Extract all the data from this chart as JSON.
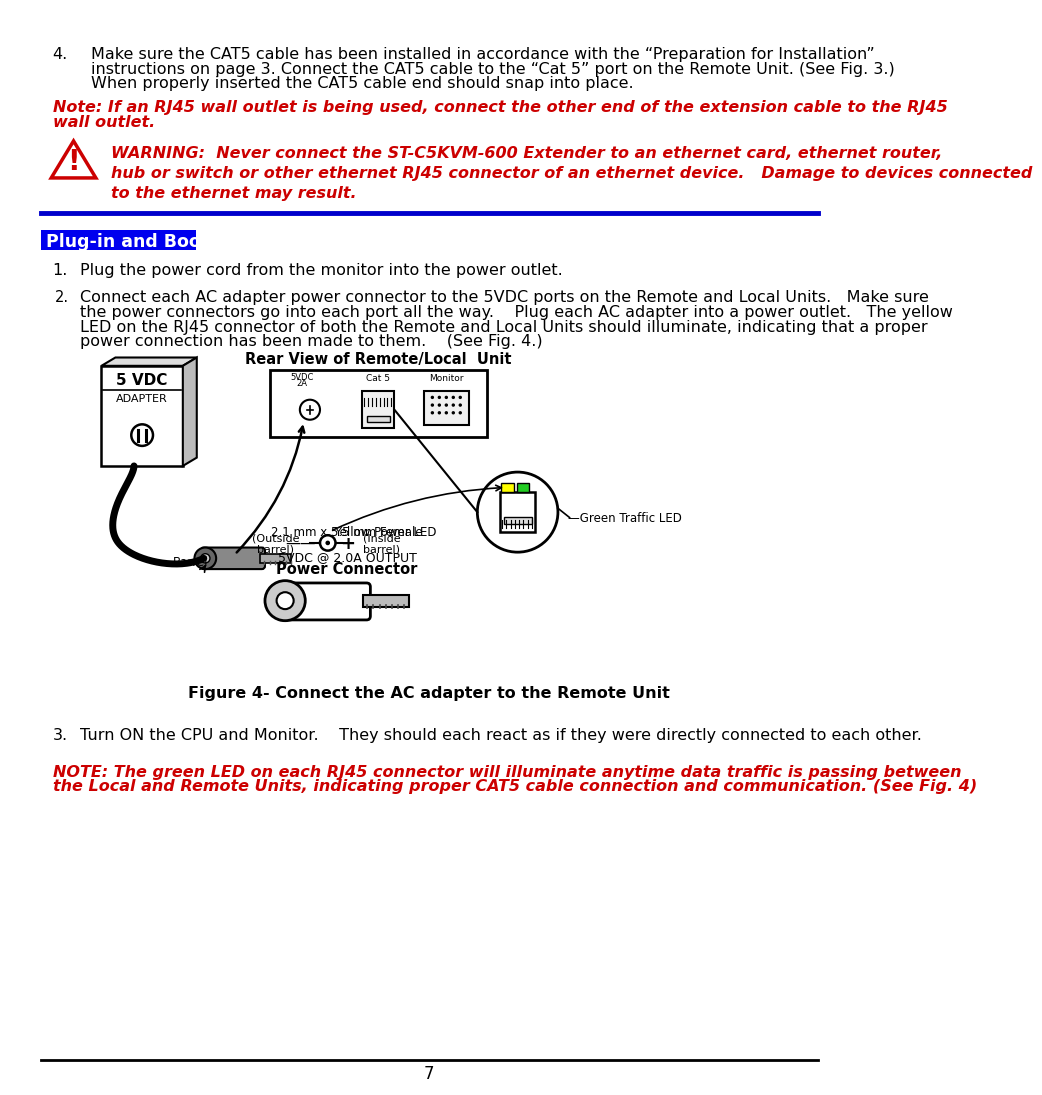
{
  "bg_color": "#ffffff",
  "text_color": "#000000",
  "red_color": "#cc0000",
  "blue_color": "#0000cc",
  "section_bg": "#0000ee",
  "section_text": "#ffffff",
  "page_number": "7",
  "item4_num": "4.",
  "item4_text_line1": "Make sure the CAT5 cable has been installed in accordance with the “Preparation for Installation”",
  "item4_text_line2": "instructions on page 3. Connect the CAT5 cable to the “Cat 5” port on the Remote Unit. (See Fig. 3.)",
  "item4_text_line3": "When properly inserted the CAT5 cable end should snap into place.",
  "note_rj45_line1": "Note: If an RJ45 wall outlet is being used, connect the other end of the extension cable to the RJ45",
  "note_rj45_line2": "wall outlet.",
  "warning_text": "WARNING:  Never connect the ST-C5KVM-600 Extender to an ethernet card, ethernet router,\nhub or switch or other ethernet RJ45 connector of an ethernet device.   Damage to devices connected\nto the ethernet may result.",
  "section_title": "Plug-in and Boot Up",
  "item1_num": "1.",
  "item1_text": "Plug the power cord from the monitor into the power outlet.",
  "item2_num": "2.",
  "item2_text_line1": "Connect each AC adapter power connector to the 5VDC ports on the Remote and Local Units.   Make sure",
  "item2_text_line2": "the power connectors go into each port all the way.    Plug each AC adapter into a power outlet.   The yellow",
  "item2_text_line3": "LED on the RJ45 connector of both the Remote and Local Units should illuminate, indicating that a proper",
  "item2_text_line4": "power connection has been made to them.    (See Fig. 4.)",
  "rear_view_label": "Rear View of Remote/Local  Unit",
  "yellow_power_led": "Yellow Power LED",
  "green_traffic_led": "Green Traffic LED",
  "barrel_label": "Barrel",
  "power_connector_title": "Power Connector",
  "power_connector_sub": "5VDC @ 2.0A OUTPUT",
  "outside_barrel": "(Outside",
  "outside_barrel2": "barrel)",
  "inside_barrel": "(Inside",
  "inside_barrel2": "barrel)",
  "connector_size": "2.1 mm x 5.5 mm Female",
  "figure_caption": "Figure 4- Connect the AC adapter to the Remote Unit",
  "item3_num": "3.",
  "item3_text": "Turn ON the CPU and Monitor.    They should each react as if they were directly connected to each other.",
  "note_green_line1": "NOTE: The green LED on each RJ45 connector will illuminate anytime data traffic is passing between",
  "note_green_line2": "the Local and Remote Units, indicating proper CAT5 cable connection and communication. (See Fig. 4)",
  "adapter_label": "5 VDC",
  "adapter_sub": "ADAPTER"
}
